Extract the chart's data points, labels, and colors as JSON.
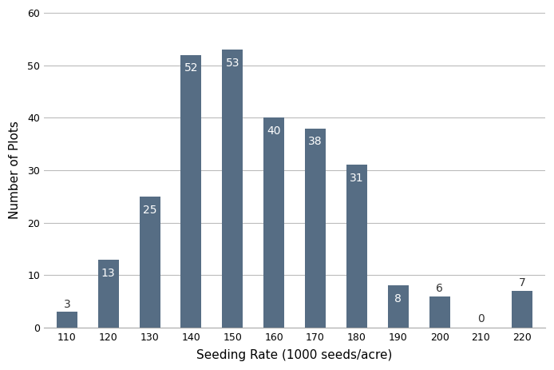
{
  "categories": [
    110,
    120,
    130,
    140,
    150,
    160,
    170,
    180,
    190,
    200,
    210,
    220
  ],
  "values": [
    3,
    13,
    25,
    52,
    53,
    40,
    38,
    31,
    8,
    6,
    0,
    7
  ],
  "bar_color": "#566d84",
  "label_color_inside": "#ffffff",
  "label_color_outside": "#333333",
  "xlabel": "Seeding Rate (1000 seeds/acre)",
  "ylabel": "Number of Plots",
  "ylim": [
    0,
    60
  ],
  "yticks": [
    0,
    10,
    20,
    30,
    40,
    50,
    60
  ],
  "background_color": "#ffffff",
  "label_fontsize": 10,
  "axis_label_fontsize": 11,
  "bar_width": 0.5,
  "grid_color": "#bbbbbb",
  "inside_threshold": 8,
  "figwidth": 6.94,
  "figheight": 4.63,
  "dpi": 100
}
